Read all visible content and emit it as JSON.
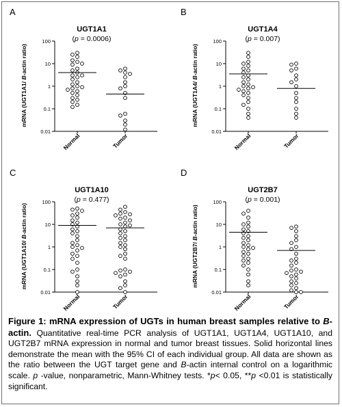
{
  "chart_data": [
    {
      "type": "scatter",
      "panel_letter": "A",
      "title": "UGT1A1",
      "pvalue_prefix": "(",
      "pvalue_p": "p",
      "pvalue_rest": " = 0.0006)",
      "ylabel_pre": "mRNA (UGT1A1/ ",
      "ylabel_italic": "B",
      "ylabel_post": "-actin ratio)",
      "yscale": "log",
      "ylim": [
        0.01,
        100
      ],
      "yticks": [
        "100",
        "10",
        "1",
        "0.1",
        "0.01"
      ],
      "categories": [
        "Normal",
        "Tumor"
      ],
      "series": [
        {
          "category": "Normal",
          "mean": 4,
          "values": [
            30,
            25,
            20,
            14,
            12,
            10,
            9,
            6,
            5,
            4,
            3,
            3,
            2.5,
            2,
            1.5,
            1.2,
            1.0,
            0.9,
            0.8,
            0.7,
            0.6,
            0.5,
            0.4,
            0.3,
            0.25,
            0.2,
            0.15,
            0.12
          ]
        },
        {
          "category": "Tumor",
          "mean": 0.45,
          "values": [
            6,
            5,
            4,
            3.5,
            2.5,
            1.5,
            1.0,
            0.8,
            0.5,
            0.3,
            0.06,
            0.05,
            0.03,
            0.02,
            0.012
          ]
        }
      ]
    },
    {
      "type": "scatter",
      "panel_letter": "B",
      "title": "UGT1A4",
      "pvalue_prefix": "(",
      "pvalue_p": "p",
      "pvalue_rest": " = 0.007)",
      "ylabel_pre": "mRNA (UGT1A4/ ",
      "ylabel_italic": "B",
      "ylabel_post": "-actin ratio)",
      "yscale": "log",
      "ylim": [
        0.01,
        100
      ],
      "yticks": [
        "100",
        "10",
        "1",
        "0.1",
        "0.01"
      ],
      "categories": [
        "Normal",
        "Tumor"
      ],
      "series": [
        {
          "category": "Normal",
          "mean": 3.5,
          "values": [
            30,
            20,
            12,
            10,
            8,
            6,
            5,
            4,
            3,
            2.5,
            2,
            1.5,
            1.2,
            1.0,
            0.9,
            0.8,
            0.7,
            0.6,
            0.5,
            0.4,
            0.3,
            0.2,
            0.15,
            0.1,
            0.06,
            0.04
          ]
        },
        {
          "category": "Tumor",
          "mean": 0.8,
          "values": [
            10,
            9,
            6,
            5,
            3,
            2,
            1.5,
            1.0,
            0.5,
            0.3,
            0.2,
            0.1,
            0.06,
            0.04
          ]
        }
      ]
    },
    {
      "type": "scatter",
      "panel_letter": "C",
      "title": "UGT1A10",
      "pvalue_prefix": "(",
      "pvalue_p": "p",
      "pvalue_rest": " = 0.477)",
      "ylabel_pre": "mRNA (UGT1A10/ ",
      "ylabel_italic": "B",
      "ylabel_post": "-actin ratio)",
      "yscale": "log",
      "ylim": [
        0.01,
        100
      ],
      "yticks": [
        "100",
        "10",
        "1",
        "0.1",
        "0.01"
      ],
      "categories": [
        "Normal",
        "Tumor"
      ],
      "series": [
        {
          "category": "Normal",
          "mean": 9,
          "values": [
            50,
            45,
            40,
            30,
            25,
            20,
            15,
            12,
            10,
            8,
            6,
            5,
            4,
            3,
            2,
            1.5,
            1.2,
            1.0,
            0.9,
            0.7,
            0.5,
            0.4,
            0.3,
            0.2,
            0.1,
            0.08,
            0.05,
            0.03,
            0.02,
            0.01
          ]
        },
        {
          "category": "Tumor",
          "mean": 7,
          "values": [
            60,
            45,
            35,
            30,
            28,
            25,
            20,
            18,
            15,
            12,
            10,
            9,
            8,
            6,
            5,
            4,
            3,
            2.5,
            2,
            1.5,
            1.2,
            1.0,
            0.8,
            0.5,
            0.4,
            0.3,
            0.1,
            0.09,
            0.08,
            0.07,
            0.06,
            0.05,
            0.03,
            0.02,
            0.015,
            0.01
          ]
        }
      ]
    },
    {
      "type": "scatter",
      "panel_letter": "D",
      "title": "UGT2B7",
      "pvalue_prefix": "(",
      "pvalue_p": "p",
      "pvalue_rest": " = 0.001)",
      "ylabel_pre": "mRNA (UGT2B7/ ",
      "ylabel_italic": "B",
      "ylabel_post": "-actin ratio)",
      "yscale": "log",
      "ylim": [
        0.01,
        100
      ],
      "yticks": [
        "100",
        "10",
        "1",
        "0.1",
        "0.01"
      ],
      "categories": [
        "Normal",
        "Tumor"
      ],
      "series": [
        {
          "category": "Normal",
          "mean": 4.5,
          "values": [
            40,
            30,
            20,
            12,
            10,
            8,
            6,
            5,
            4,
            3,
            2.5,
            2,
            1.5,
            1.2,
            1.0,
            0.9,
            0.8,
            0.6,
            0.5,
            0.4,
            0.3,
            0.25,
            0.2,
            0.15,
            0.1,
            0.06,
            0.03,
            0.02
          ]
        },
        {
          "category": "Tumor",
          "mean": 0.7,
          "values": [
            8,
            7,
            5,
            3,
            2,
            1.5,
            1.0,
            0.8,
            0.5,
            0.3,
            0.25,
            0.2,
            0.15,
            0.1,
            0.09,
            0.08,
            0.07,
            0.06,
            0.05,
            0.04,
            0.03,
            0.025,
            0.02,
            0.015,
            0.012,
            0.01,
            0.01
          ]
        }
      ]
    }
  ],
  "caption": {
    "figure_label": "Figure 1:",
    "title_a": " mRNA expression of UGTs in human breast samples relative to ",
    "title_b_italic": "B",
    "title_c": "-actin.",
    "s1": " Quantitative real-time PCR analysis of UGT1A1, UGT1A4, UGT1A10, and UGT2B7 mRNA expression in normal and tumor breast tissues. Solid horizontal lines demonstrate the mean with the 95% CI of each individual group. All data are shown as the ratio between the UGT target gene and ",
    "s2_italic": "B",
    "s3": "-actin internal control on a logarithmic scale. ",
    "s4_italic": "p",
    "s5": " -value, nonparametric, Mann-Whitney tests. *",
    "s6_italic": "p",
    "s7": "< 0.05, **",
    "s8_italic": "p",
    "s9": " <0.01 is statistically significant."
  }
}
